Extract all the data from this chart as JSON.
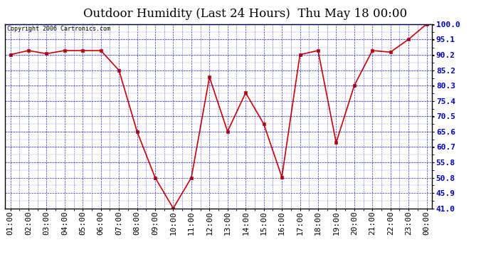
{
  "title": "Outdoor Humidity (Last 24 Hours)  Thu May 18 00:00",
  "copyright": "Copyright 2006 Cartronics.com",
  "x_labels": [
    "01:00",
    "02:00",
    "03:00",
    "04:00",
    "05:00",
    "06:00",
    "07:00",
    "08:00",
    "09:00",
    "10:00",
    "11:00",
    "12:00",
    "13:00",
    "14:00",
    "15:00",
    "16:00",
    "17:00",
    "18:00",
    "19:00",
    "20:00",
    "21:00",
    "22:00",
    "23:00",
    "00:00"
  ],
  "y_values": [
    90.2,
    91.5,
    90.5,
    91.5,
    91.5,
    91.5,
    85.2,
    65.6,
    50.8,
    41.0,
    50.8,
    83.0,
    65.6,
    78.0,
    68.0,
    51.0,
    90.2,
    91.5,
    62.0,
    80.3,
    91.5,
    91.0,
    95.1,
    100.0
  ],
  "ylim_min": 41.0,
  "ylim_max": 100.0,
  "yticks": [
    41.0,
    45.9,
    50.8,
    55.8,
    60.7,
    65.6,
    70.5,
    75.4,
    80.3,
    85.2,
    90.2,
    95.1,
    100.0
  ],
  "line_color": "#cc0000",
  "marker_color": "#cc0000",
  "fig_bg_color": "#ffffff",
  "plot_bg_color": "#ffffff",
  "grid_color": "#0000bb",
  "title_color": "#000000",
  "border_color": "#000000",
  "text_color": "#000000",
  "copyright_color": "#000000",
  "title_fontsize": 12,
  "tick_fontsize": 8,
  "ylabel_color": "#0000bb",
  "ylabel_fontweight": "bold"
}
